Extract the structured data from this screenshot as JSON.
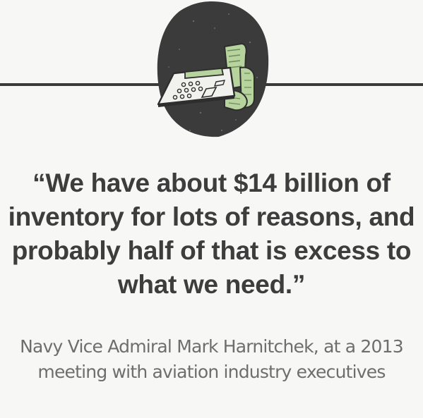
{
  "illustration": {
    "icon": "calculator-with-receipt-icon",
    "colors": {
      "background_blob": "#3b3b3b",
      "paper": "#b7d39e",
      "rule": "#3a3a3a"
    }
  },
  "quote": {
    "line1": "“We have about $14 billion of",
    "line2": "inventory for lots of reasons, and",
    "line3": "probably half of that is excess to",
    "line4": "what we need.”"
  },
  "attribution": {
    "line1": "Navy Vice Admiral Mark Harnitchek, at a 2013",
    "line2": "meeting with aviation industry executives"
  }
}
